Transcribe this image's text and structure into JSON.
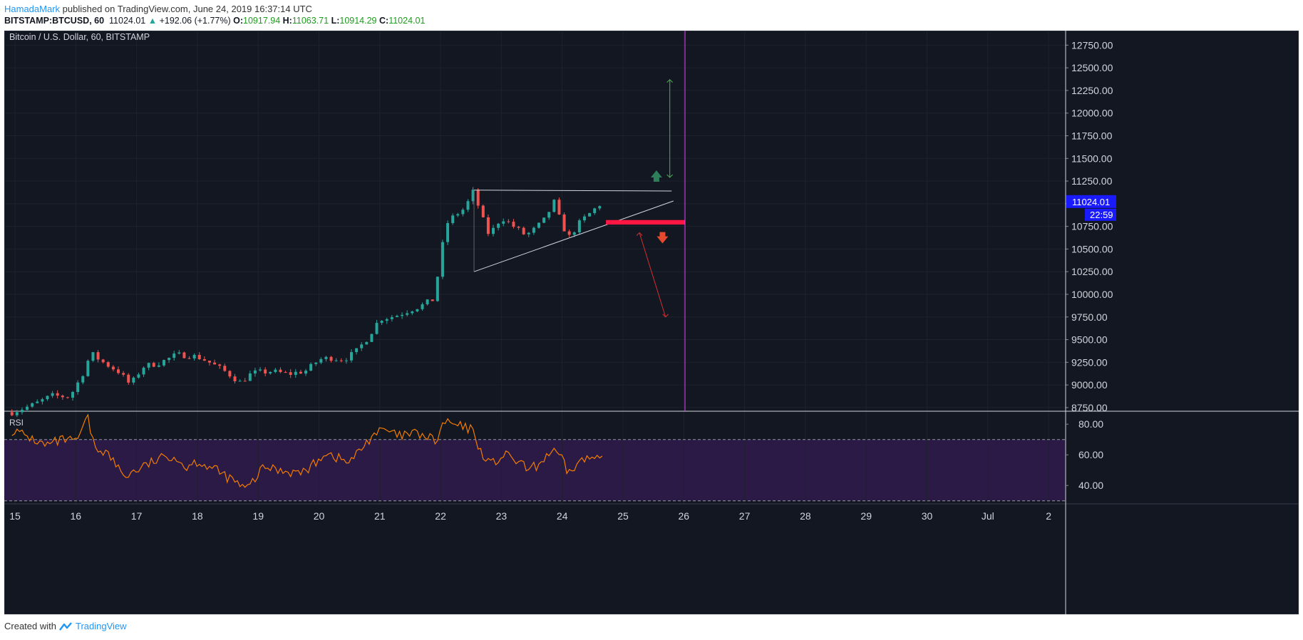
{
  "header": {
    "author": "HamadaMark",
    "published": "published on TradingView.com, June 24, 2019 16:37:14 UTC"
  },
  "ticker": {
    "symbol": "BITSTAMP:BTCUSD, 60",
    "last": "11024.01",
    "change": "+192.06 (+1.77%)",
    "o_label": "O:",
    "o": "10917.94",
    "h_label": "H:",
    "h": "11063.71",
    "l_label": "L:",
    "l": "10914.29",
    "c_label": "C:",
    "c": "11024.01"
  },
  "footer": {
    "created_with": "Created with",
    "brand": "TradingView"
  },
  "colors": {
    "background": "#131722",
    "grid": "#1e222d",
    "up": "#26a69a",
    "down": "#ef5350",
    "rsi_line": "#f57c00",
    "rsi_band": "#2a1a45",
    "magenta_line": "#e040fb",
    "price_tag": "#1a1aff",
    "target_up": "#4caf50",
    "target_down": "#d32f2f",
    "support_zone": "#ff1744"
  },
  "chart_data": [
    {
      "type": "candlestick",
      "title": "Bitcoin / U.S. Dollar, 60, BITSTAMP",
      "y_ticks": [
        "12750.00",
        "12500.00",
        "12250.00",
        "12000.00",
        "11750.00",
        "11500.00",
        "11250.00",
        "11000.00",
        "10750.00",
        "10500.00",
        "10250.00",
        "10000.00",
        "9750.00",
        "9500.00",
        "9250.00",
        "9000.00",
        "8750.00"
      ],
      "ylim": [
        8710,
        12910
      ],
      "x_ticks": [
        "15",
        "16",
        "17",
        "18",
        "19",
        "20",
        "21",
        "22",
        "23",
        "24",
        "25",
        "26",
        "27",
        "28",
        "29",
        "30",
        "Jul",
        "2"
      ],
      "last_price_label": "11024.01",
      "countdown_label": "22:59",
      "closes": [
        {
          "day": 14.95,
          "v": 8700
        },
        {
          "day": 15.3,
          "v": 8780
        },
        {
          "day": 15.6,
          "v": 8880
        },
        {
          "day": 15.9,
          "v": 8870
        },
        {
          "day": 16.1,
          "v": 9100
        },
        {
          "day": 16.25,
          "v": 9350
        },
        {
          "day": 16.45,
          "v": 9250
        },
        {
          "day": 16.7,
          "v": 9150
        },
        {
          "day": 16.9,
          "v": 9000
        },
        {
          "day": 17.1,
          "v": 9200
        },
        {
          "day": 17.4,
          "v": 9250
        },
        {
          "day": 17.65,
          "v": 9330
        },
        {
          "day": 17.85,
          "v": 9330
        },
        {
          "day": 18.05,
          "v": 9300
        },
        {
          "day": 18.25,
          "v": 9230
        },
        {
          "day": 18.5,
          "v": 9130
        },
        {
          "day": 18.7,
          "v": 9030
        },
        {
          "day": 18.9,
          "v": 9130
        },
        {
          "day": 19.2,
          "v": 9150
        },
        {
          "day": 19.5,
          "v": 9120
        },
        {
          "day": 19.8,
          "v": 9160
        },
        {
          "day": 20.0,
          "v": 9280
        },
        {
          "day": 20.2,
          "v": 9300
        },
        {
          "day": 20.4,
          "v": 9280
        },
        {
          "day": 20.6,
          "v": 9360
        },
        {
          "day": 20.8,
          "v": 9520
        },
        {
          "day": 21.0,
          "v": 9730
        },
        {
          "day": 21.25,
          "v": 9760
        },
        {
          "day": 21.5,
          "v": 9830
        },
        {
          "day": 21.7,
          "v": 9880
        },
        {
          "day": 21.9,
          "v": 9950
        },
        {
          "day": 22.0,
          "v": 10450
        },
        {
          "day": 22.12,
          "v": 10800
        },
        {
          "day": 22.25,
          "v": 10880
        },
        {
          "day": 22.4,
          "v": 10950
        },
        {
          "day": 22.55,
          "v": 11150
        },
        {
          "day": 22.65,
          "v": 10900
        },
        {
          "day": 22.8,
          "v": 10650
        },
        {
          "day": 23.0,
          "v": 10850
        },
        {
          "day": 23.2,
          "v": 10750
        },
        {
          "day": 23.4,
          "v": 10650
        },
        {
          "day": 23.55,
          "v": 10720
        },
        {
          "day": 23.75,
          "v": 10850
        },
        {
          "day": 23.85,
          "v": 11050
        },
        {
          "day": 23.95,
          "v": 10850
        },
        {
          "day": 24.1,
          "v": 10620
        },
        {
          "day": 24.3,
          "v": 10800
        },
        {
          "day": 24.5,
          "v": 10920
        },
        {
          "day": 24.67,
          "v": 11024
        }
      ]
    },
    {
      "type": "line",
      "title": "RSI",
      "y_ticks": [
        "80.00",
        "60.00",
        "40.00"
      ],
      "ylim": [
        28,
        88
      ],
      "bands": [
        30,
        70
      ],
      "rsi": [
        {
          "day": 14.95,
          "v": 76
        },
        {
          "day": 15.2,
          "v": 72
        },
        {
          "day": 15.5,
          "v": 66
        },
        {
          "day": 15.8,
          "v": 70
        },
        {
          "day": 16.0,
          "v": 68
        },
        {
          "day": 16.2,
          "v": 84
        },
        {
          "day": 16.3,
          "v": 65
        },
        {
          "day": 16.5,
          "v": 62
        },
        {
          "day": 16.8,
          "v": 46
        },
        {
          "day": 17.1,
          "v": 52
        },
        {
          "day": 17.3,
          "v": 56
        },
        {
          "day": 17.6,
          "v": 60
        },
        {
          "day": 17.8,
          "v": 52
        },
        {
          "day": 18.0,
          "v": 56
        },
        {
          "day": 18.3,
          "v": 50
        },
        {
          "day": 18.6,
          "v": 43
        },
        {
          "day": 18.8,
          "v": 37
        },
        {
          "day": 19.1,
          "v": 52
        },
        {
          "day": 19.4,
          "v": 50
        },
        {
          "day": 19.7,
          "v": 48
        },
        {
          "day": 19.9,
          "v": 53
        },
        {
          "day": 20.1,
          "v": 62
        },
        {
          "day": 20.3,
          "v": 58
        },
        {
          "day": 20.5,
          "v": 55
        },
        {
          "day": 20.7,
          "v": 64
        },
        {
          "day": 20.9,
          "v": 74
        },
        {
          "day": 21.1,
          "v": 76
        },
        {
          "day": 21.3,
          "v": 72
        },
        {
          "day": 21.6,
          "v": 74
        },
        {
          "day": 21.8,
          "v": 71
        },
        {
          "day": 21.95,
          "v": 69
        },
        {
          "day": 22.05,
          "v": 82
        },
        {
          "day": 22.2,
          "v": 80
        },
        {
          "day": 22.35,
          "v": 78
        },
        {
          "day": 22.55,
          "v": 76
        },
        {
          "day": 22.65,
          "v": 62
        },
        {
          "day": 22.85,
          "v": 54
        },
        {
          "day": 23.05,
          "v": 60
        },
        {
          "day": 23.25,
          "v": 56
        },
        {
          "day": 23.45,
          "v": 50
        },
        {
          "day": 23.6,
          "v": 53
        },
        {
          "day": 23.8,
          "v": 62
        },
        {
          "day": 23.95,
          "v": 60
        },
        {
          "day": 24.1,
          "v": 48
        },
        {
          "day": 24.3,
          "v": 56
        },
        {
          "day": 24.5,
          "v": 58
        },
        {
          "day": 24.67,
          "v": 63
        }
      ]
    }
  ]
}
